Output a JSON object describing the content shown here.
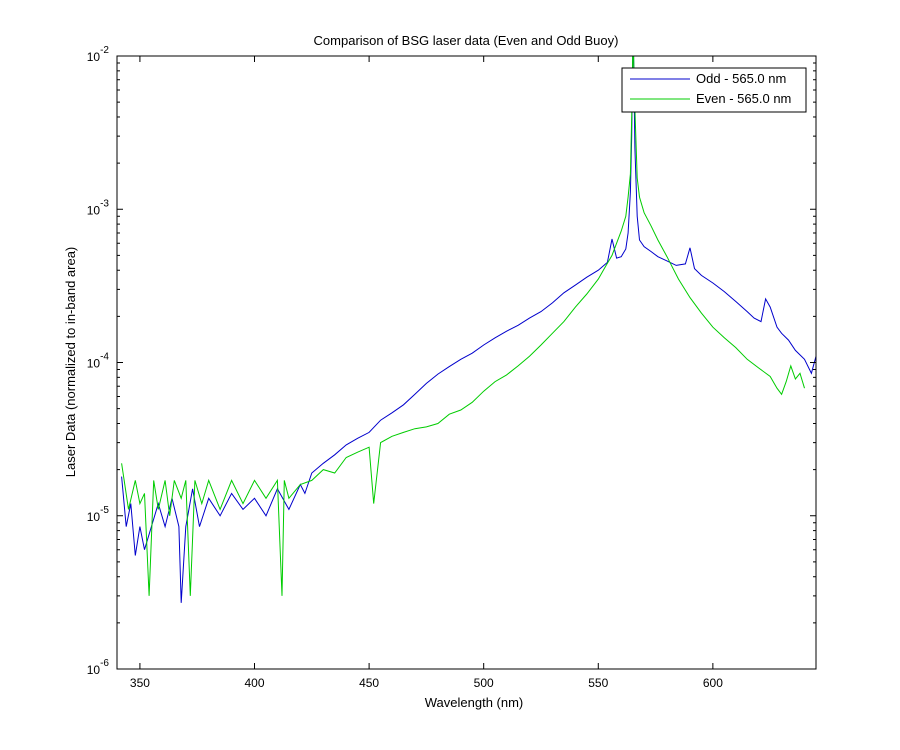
{
  "chart_data": {
    "type": "line",
    "title": "Comparison of BSG laser data (Even and Odd Buoy)",
    "xlabel": "Wavelength (nm)",
    "ylabel": "Laser Data (normalized to in-band area)",
    "xlim": [
      340,
      645
    ],
    "ylim": [
      1e-06,
      0.01
    ],
    "yscale": "log",
    "grid": false,
    "legend_position": "top-right",
    "x_ticks": [
      350,
      400,
      450,
      500,
      550,
      600
    ],
    "y_ticks": [
      {
        "value": 1e-06,
        "base": "10",
        "exp": "-6"
      },
      {
        "value": 1e-05,
        "base": "10",
        "exp": "-5"
      },
      {
        "value": 0.0001,
        "base": "10",
        "exp": "-4"
      },
      {
        "value": 0.001,
        "base": "10",
        "exp": "-3"
      },
      {
        "value": 0.01,
        "base": "10",
        "exp": "-2"
      }
    ],
    "series": [
      {
        "name": "Odd - 565.0 nm",
        "color": "#0000cc",
        "x": [
          342,
          344,
          346,
          348,
          350,
          352,
          355,
          358,
          361,
          364,
          367,
          368,
          370,
          373,
          376,
          380,
          385,
          390,
          395,
          400,
          405,
          410,
          415,
          420,
          422,
          425,
          430,
          435,
          440,
          445,
          450,
          455,
          460,
          465,
          470,
          475,
          480,
          485,
          490,
          495,
          500,
          505,
          510,
          515,
          520,
          525,
          530,
          535,
          540,
          545,
          550,
          554,
          556,
          558,
          560,
          562,
          563,
          564,
          564.6,
          565,
          565.4,
          566,
          567,
          568,
          570,
          573,
          576,
          580,
          584,
          588,
          590,
          592,
          595,
          600,
          605,
          610,
          615,
          618,
          621,
          623,
          625,
          628,
          630,
          633,
          636,
          640,
          643,
          645
        ],
        "y": [
          1.8e-05,
          8.5e-06,
          1.2e-05,
          5.5e-06,
          8.5e-06,
          6e-06,
          8.5e-06,
          1.2e-05,
          8.5e-06,
          1.3e-05,
          8.5e-06,
          2.7e-06,
          8.5e-06,
          1.5e-05,
          8.5e-06,
          1.3e-05,
          1e-05,
          1.4e-05,
          1.1e-05,
          1.3e-05,
          1e-05,
          1.5e-05,
          1.1e-05,
          1.6e-05,
          1.4e-05,
          1.9e-05,
          2.2e-05,
          2.5e-05,
          2.9e-05,
          3.2e-05,
          3.5e-05,
          4.2e-05,
          4.7e-05,
          5.3e-05,
          6.2e-05,
          7.3e-05,
          8.4e-05,
          9.4e-05,
          0.000105,
          0.000115,
          0.00013,
          0.000145,
          0.00016,
          0.000175,
          0.000195,
          0.000215,
          0.000245,
          0.000285,
          0.00032,
          0.00036,
          0.0004,
          0.00045,
          0.00064,
          0.00048,
          0.00049,
          0.00055,
          0.0007,
          0.0013,
          0.003,
          0.01,
          0.01,
          0.0025,
          0.0009,
          0.00063,
          0.00057,
          0.00053,
          0.00049,
          0.00046,
          0.00043,
          0.00044,
          0.00056,
          0.00041,
          0.00037,
          0.00033,
          0.00029,
          0.00025,
          0.000215,
          0.000195,
          0.000185,
          0.00026,
          0.00023,
          0.00017,
          0.000155,
          0.00014,
          0.00012,
          0.000105,
          8.5e-05,
          0.00011
        ]
      },
      {
        "name": "Even - 565.0 nm",
        "color": "#00cc00",
        "x": [
          342,
          345,
          348,
          350,
          352,
          354,
          356,
          358,
          361,
          363,
          365,
          368,
          370,
          372,
          374,
          377,
          380,
          385,
          390,
          395,
          400,
          405,
          410,
          412,
          413,
          415,
          420,
          425,
          430,
          435,
          440,
          445,
          450,
          452,
          455,
          460,
          465,
          470,
          475,
          480,
          485,
          490,
          495,
          500,
          505,
          510,
          515,
          520,
          525,
          530,
          535,
          540,
          545,
          550,
          553,
          556,
          558,
          560,
          562,
          563,
          564,
          564.6,
          565,
          565.4,
          566,
          567,
          568,
          570,
          573,
          576,
          580,
          585,
          590,
          595,
          600,
          605,
          610,
          615,
          620,
          625,
          628,
          630,
          632,
          634,
          636,
          638,
          640
        ],
        "y": [
          2.2e-05,
          1.1e-05,
          1.7e-05,
          1.2e-05,
          1.4e-05,
          3e-06,
          1.7e-05,
          1.1e-05,
          1.7e-05,
          1e-05,
          1.7e-05,
          1.3e-05,
          1.7e-05,
          3e-06,
          1.7e-05,
          1.2e-05,
          1.7e-05,
          1.1e-05,
          1.7e-05,
          1.2e-05,
          1.7e-05,
          1.3e-05,
          1.7e-05,
          3e-06,
          1.7e-05,
          1.3e-05,
          1.6e-05,
          1.7e-05,
          2e-05,
          1.9e-05,
          2.4e-05,
          2.6e-05,
          2.8e-05,
          1.2e-05,
          3e-05,
          3.3e-05,
          3.5e-05,
          3.7e-05,
          3.8e-05,
          4e-05,
          4.6e-05,
          4.9e-05,
          5.5e-05,
          6.5e-05,
          7.5e-05,
          8.3e-05,
          9.5e-05,
          0.00011,
          0.00013,
          0.000155,
          0.000185,
          0.00023,
          0.00028,
          0.00035,
          0.00042,
          0.0005,
          0.0006,
          0.00072,
          0.0009,
          0.0012,
          0.0017,
          0.004,
          0.01,
          0.01,
          0.0045,
          0.0016,
          0.0012,
          0.00095,
          0.00078,
          0.00063,
          0.00049,
          0.00035,
          0.000265,
          0.00021,
          0.00017,
          0.000145,
          0.000125,
          0.000105,
          9.2e-05,
          8.1e-05,
          6.8e-05,
          6.2e-05,
          7.5e-05,
          9.5e-05,
          7.8e-05,
          8.5e-05,
          6.8e-05
        ]
      }
    ]
  }
}
